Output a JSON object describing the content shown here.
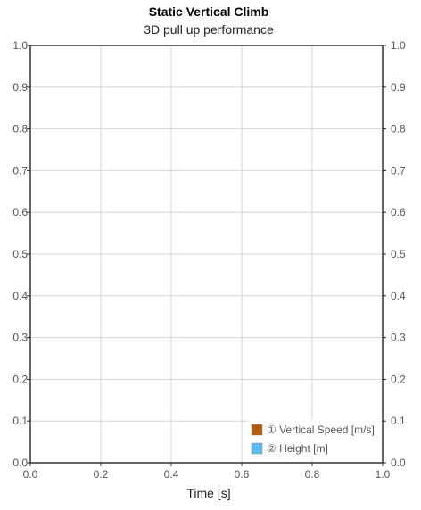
{
  "chart_data": {
    "type": "line",
    "title": "Static Vertical Climb",
    "subtitle": "3D pull up performance",
    "xlabel": "Time [s]",
    "ylabel": "",
    "xlim": [
      0,
      1
    ],
    "ylim": [
      0,
      1
    ],
    "y2lim": [
      0,
      1
    ],
    "x_ticks": [
      "0.0",
      "0.2",
      "0.4",
      "0.6",
      "0.8",
      "1.0"
    ],
    "y_ticks": [
      "0.0",
      "0.1",
      "0.2",
      "0.3",
      "0.4",
      "0.5",
      "0.6",
      "0.7",
      "0.8",
      "0.9",
      "1.0"
    ],
    "y2_ticks": [
      "0.0",
      "0.1",
      "0.2",
      "0.3",
      "0.4",
      "0.5",
      "0.6",
      "0.7",
      "0.8",
      "0.9",
      "1.0"
    ],
    "grid": true,
    "legend_position": "bottom-right",
    "series": [
      {
        "name": "① Vertical Speed [m/s]",
        "color": "#b35c0f",
        "values": []
      },
      {
        "name": "② Height [m]",
        "color": "#5bbcf0",
        "values": []
      }
    ]
  }
}
